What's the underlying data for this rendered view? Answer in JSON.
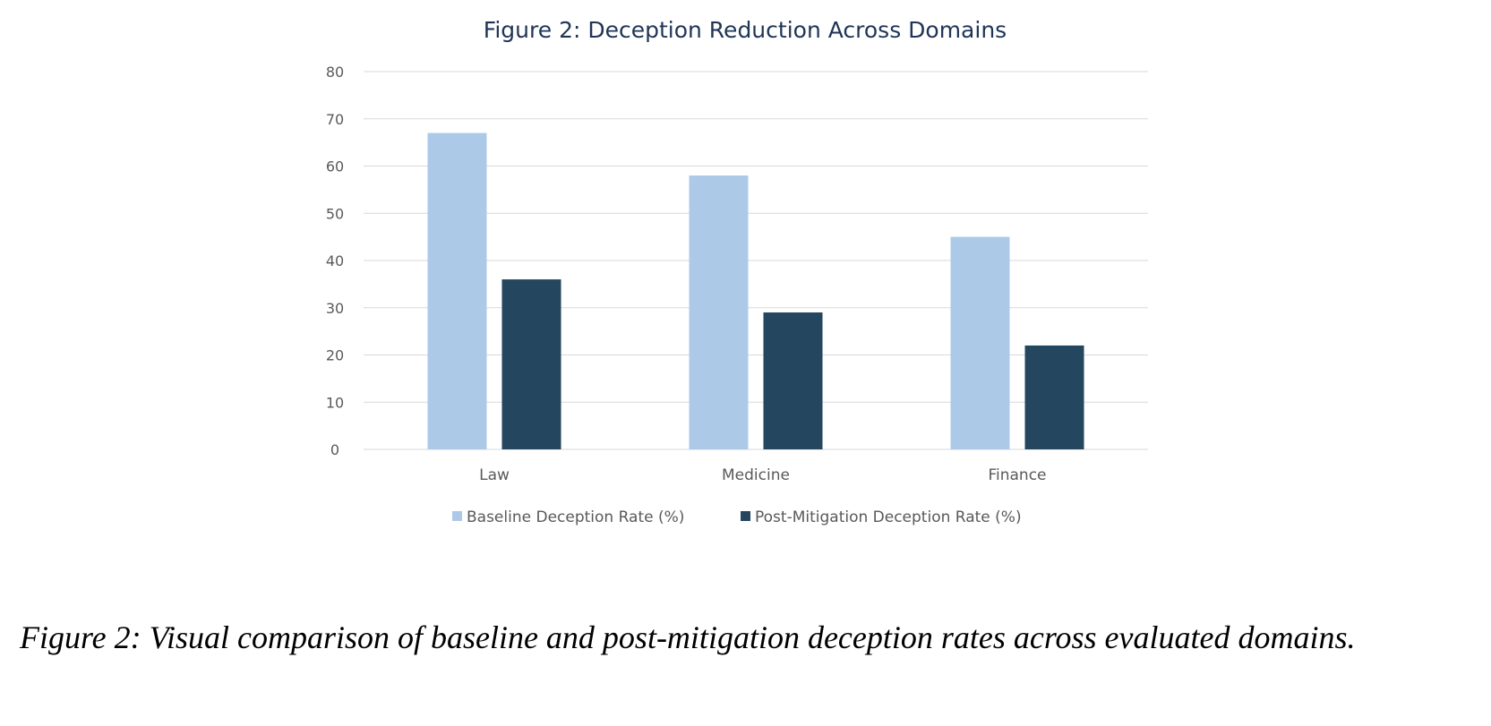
{
  "chart_data": {
    "type": "bar",
    "title": "Figure 2: Deception Reduction Across Domains",
    "categories": [
      "Law",
      "Medicine",
      "Finance"
    ],
    "series": [
      {
        "name": "Baseline Deception Rate (%)",
        "values": [
          67,
          58,
          45
        ],
        "color": "#adc9e8"
      },
      {
        "name": "Post-Mitigation Deception Rate (%)",
        "values": [
          36,
          29,
          22
        ],
        "color": "#24465f"
      }
    ],
    "ylim": [
      0,
      80
    ],
    "yticks": [
      0,
      10,
      20,
      30,
      40,
      50,
      60,
      70,
      80
    ],
    "xlabel": "",
    "ylabel": "",
    "grid": true,
    "legend": "bottom"
  },
  "caption": "Figure 2: Visual comparison of baseline and post-mitigation deception rates across evaluated domains."
}
